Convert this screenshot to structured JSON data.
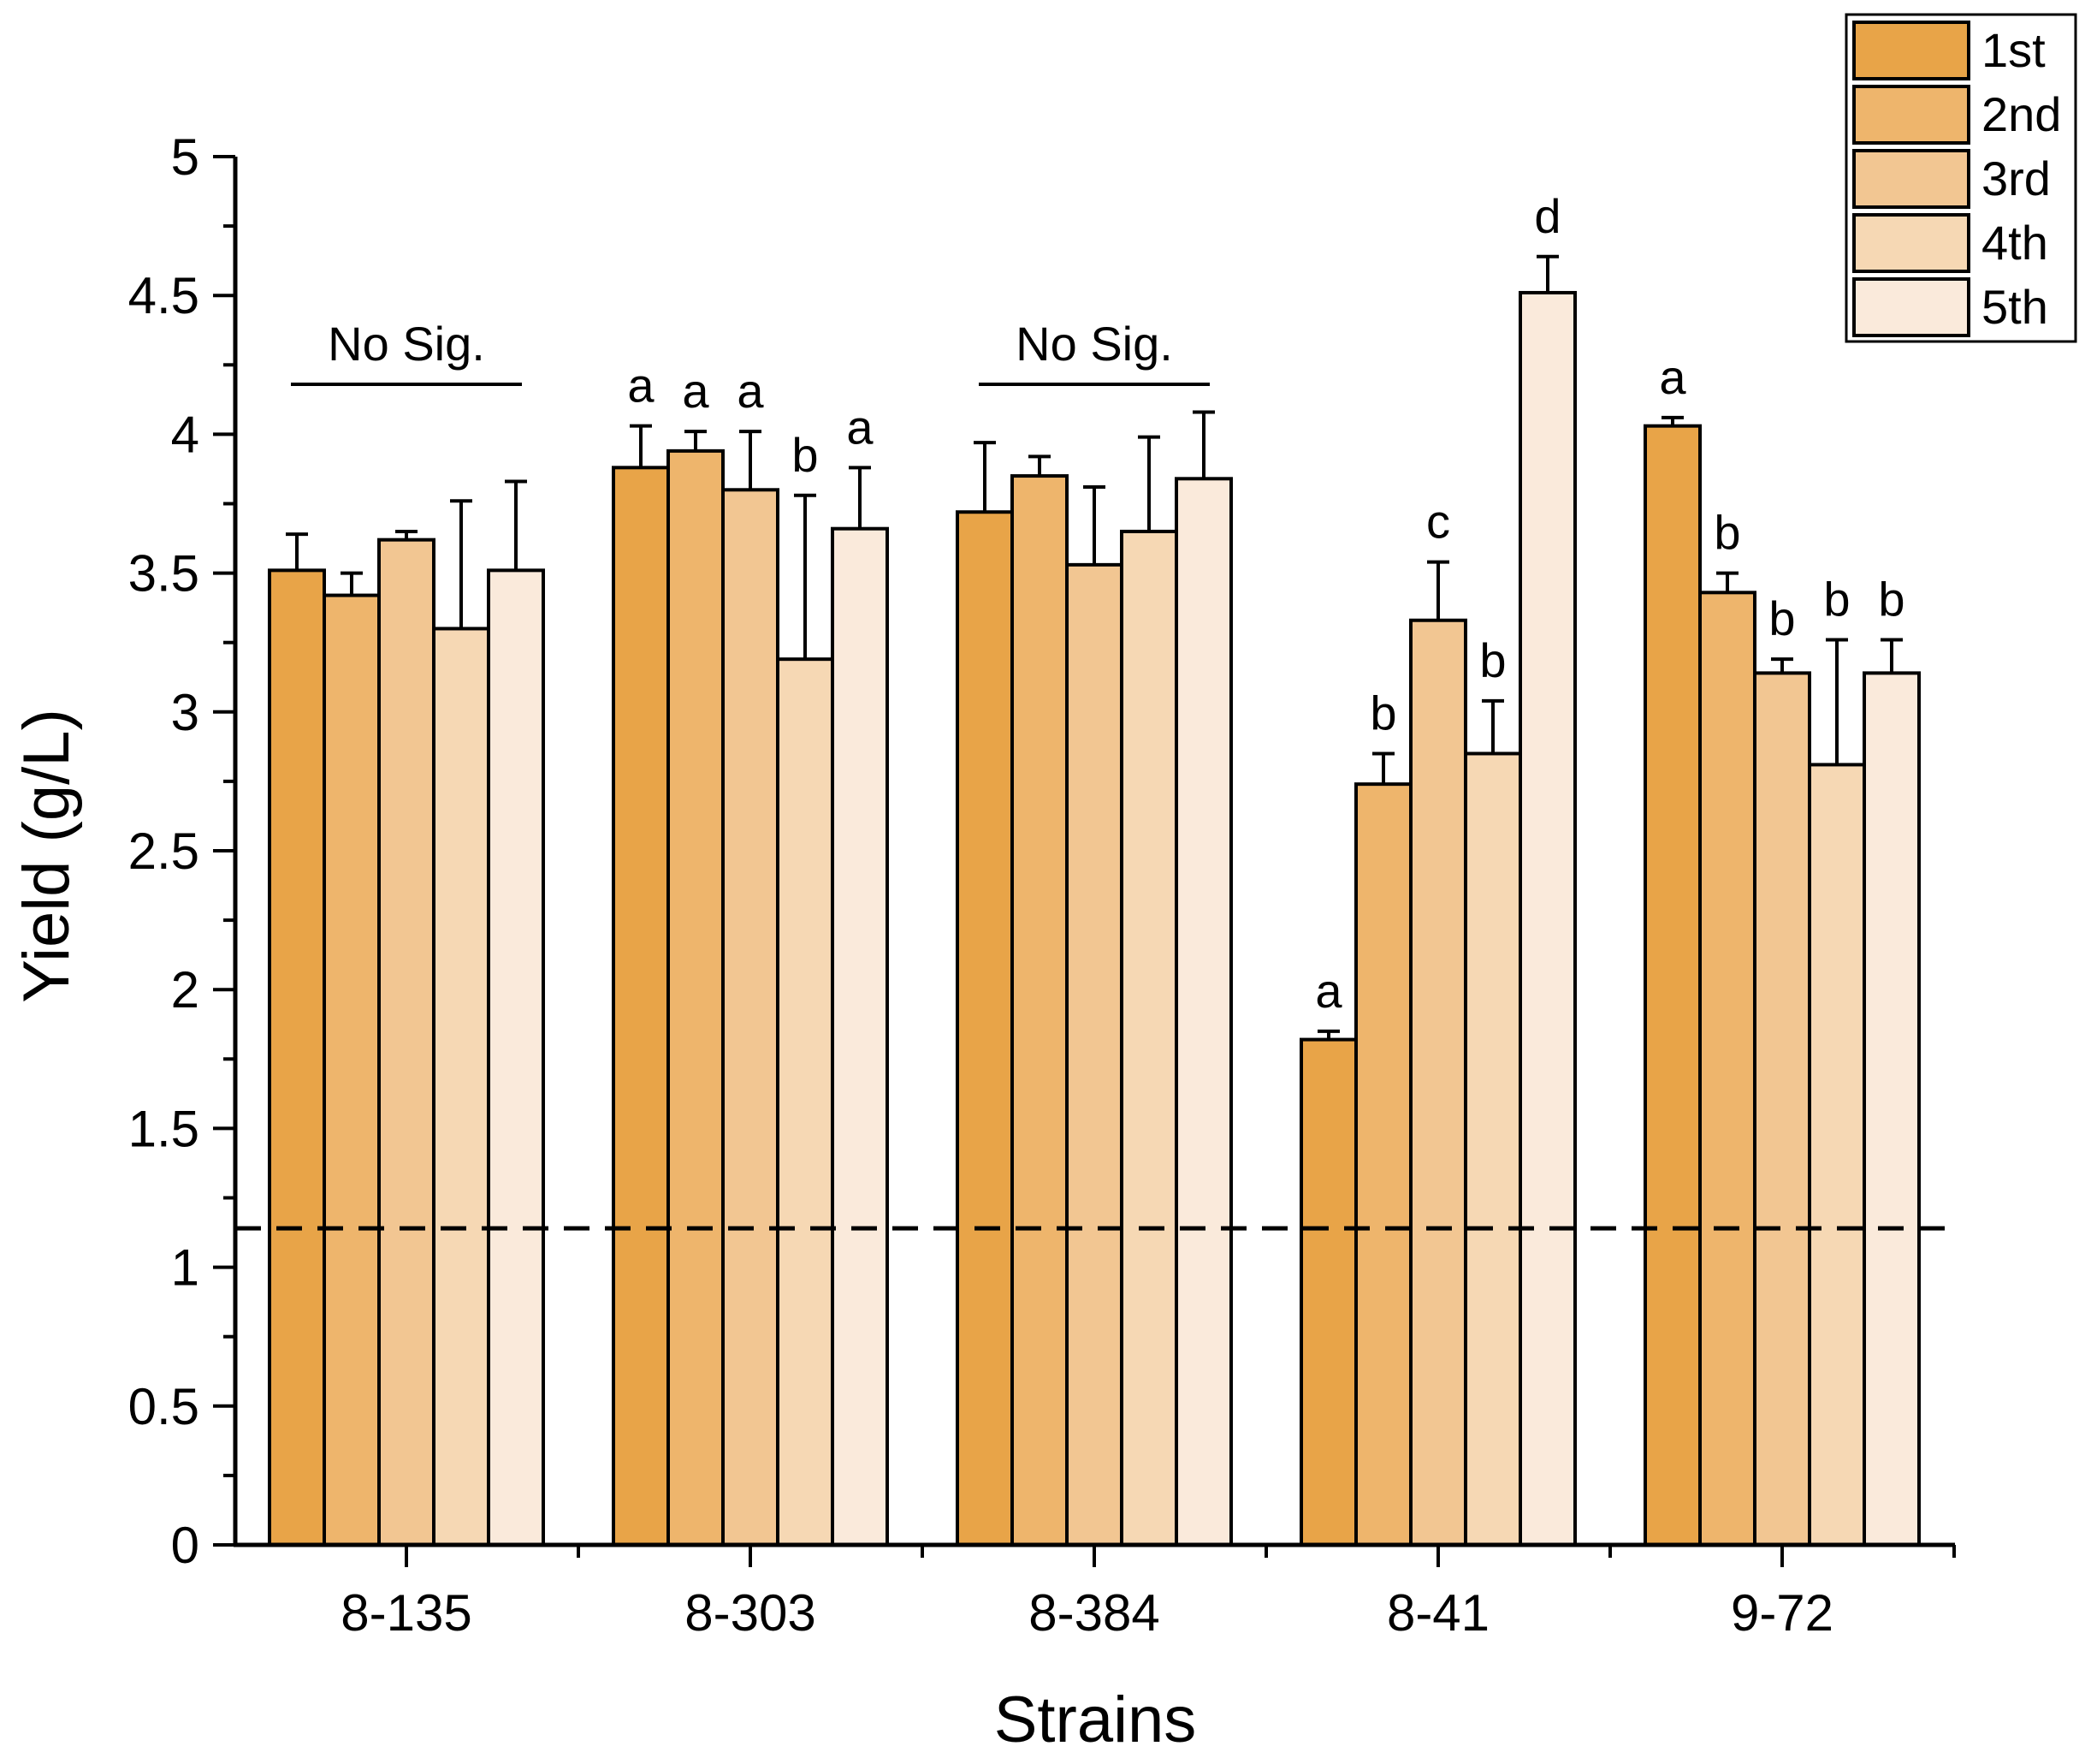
{
  "chart_data": {
    "type": "bar",
    "title": "",
    "xlabel": "Strains",
    "ylabel": "Yield (g/L)",
    "ylim": [
      0,
      5
    ],
    "yticks": [
      "0",
      "0.5",
      "1",
      "1.5",
      "2",
      "2.5",
      "3",
      "3.5",
      "4",
      "4.5",
      "5"
    ],
    "categories": [
      "8-135",
      "8-303",
      "8-384",
      "8-41",
      "9-72"
    ],
    "series": [
      {
        "name": "1st",
        "color": "#e8a448",
        "values": [
          3.51,
          3.88,
          3.72,
          1.82,
          4.03
        ],
        "errors": [
          0.13,
          0.15,
          0.25,
          0.03,
          0.03
        ]
      },
      {
        "name": "2nd",
        "color": "#eeb56c",
        "values": [
          3.42,
          3.94,
          3.85,
          2.74,
          3.43
        ],
        "errors": [
          0.08,
          0.07,
          0.07,
          0.11,
          0.07
        ]
      },
      {
        "name": "3rd",
        "color": "#f2c692",
        "values": [
          3.62,
          3.8,
          3.53,
          3.33,
          3.14
        ],
        "errors": [
          0.03,
          0.21,
          0.28,
          0.21,
          0.05
        ]
      },
      {
        "name": "4th",
        "color": "#f6d8b4",
        "values": [
          3.3,
          3.19,
          3.65,
          2.85,
          2.81
        ],
        "errors": [
          0.46,
          0.59,
          0.34,
          0.19,
          0.45
        ]
      },
      {
        "name": "5th",
        "color": "#faeadb",
        "values": [
          3.51,
          3.66,
          3.84,
          4.51,
          3.14
        ],
        "errors": [
          0.32,
          0.22,
          0.24,
          0.13,
          0.12
        ]
      }
    ],
    "reference_line": {
      "y": 1.14,
      "style": "dashed"
    },
    "group_annotations": [
      {
        "group": 0,
        "text": "No Sig."
      },
      {
        "group": 2,
        "text": "No Sig."
      }
    ],
    "significance_letters": [
      [
        null,
        null,
        null,
        null,
        null
      ],
      [
        "a",
        "a",
        "a",
        "b",
        "a"
      ],
      [
        null,
        null,
        null,
        null,
        null
      ],
      [
        "a",
        "b",
        "c",
        "b",
        "d"
      ],
      [
        "a",
        "b",
        "b",
        "b",
        "b"
      ]
    ],
    "legend": {
      "position": "top-right",
      "entries": [
        "1st",
        "2nd",
        "3rd",
        "4th",
        "5th"
      ]
    },
    "grid": false
  }
}
